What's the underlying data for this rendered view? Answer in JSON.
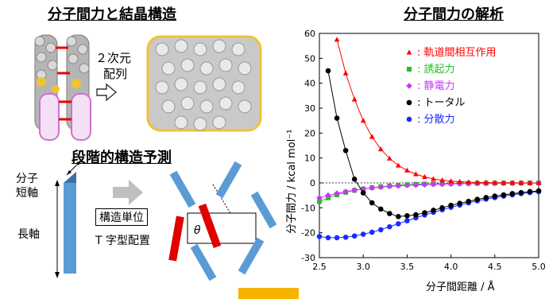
{
  "left": {
    "heading1": "分子間力と結晶構造",
    "array_label_line1": "２次元",
    "array_label_line2": "配列",
    "heading2": "段階的構造予測",
    "short_axis_line1": "分子",
    "short_axis_line2": "短軸",
    "long_axis": "長軸",
    "unit_label": "構造単位",
    "t_label": "T 字型配置",
    "theta": "θ"
  },
  "colors": {
    "orbital": "#ff0000",
    "induction": "#22c122",
    "electrostatic": "#cc33ff",
    "total": "#000000",
    "dispersion": "#1a2cff",
    "arrow": "#f5b400",
    "rod": "#5b9bd5",
    "rod_red": "#e00000"
  },
  "chart_data": {
    "type": "line",
    "title": "分子間力の解析",
    "xlabel": "分子間距離 / Å",
    "ylabel": "分子間力 / kcal mol⁻¹",
    "xlim": [
      2.5,
      5.0
    ],
    "ylim": [
      -30,
      60
    ],
    "xticks": [
      "2.5",
      "3.0",
      "3.5",
      "4.0",
      "4.5",
      "5.0"
    ],
    "yticks": [
      "60",
      "50",
      "40",
      "30",
      "20",
      "10",
      "0",
      "-10",
      "-20",
      "-30"
    ],
    "legend_position": "top-right",
    "series": [
      {
        "name": "軌道間相互作用",
        "marker": "triangle",
        "color": "#ff0000",
        "x": [
          2.7,
          2.8,
          2.9,
          3.0,
          3.1,
          3.2,
          3.3,
          3.4,
          3.5,
          3.6,
          3.7,
          3.8,
          3.9,
          4.0,
          4.1,
          4.2,
          4.3,
          4.4,
          4.5,
          4.6,
          4.7,
          4.8,
          4.9,
          5.0
        ],
        "y": [
          57.5,
          44.0,
          33.5,
          25.0,
          18.5,
          13.5,
          9.8,
          7.0,
          5.0,
          3.5,
          2.4,
          1.6,
          1.1,
          0.7,
          0.5,
          0.3,
          0.2,
          0.15,
          0.1,
          0.05,
          0.03,
          0.02,
          0.01,
          0.0
        ]
      },
      {
        "name": "誘起力",
        "marker": "square",
        "color": "#22c122",
        "x": [
          2.5,
          2.6,
          2.7,
          2.8,
          2.9,
          3.0,
          3.1,
          3.2,
          3.3,
          3.4,
          3.5,
          3.6,
          3.7,
          3.8,
          3.9,
          4.0,
          4.1,
          4.2,
          4.3,
          4.4,
          4.5,
          4.6,
          4.7,
          4.8,
          4.9,
          5.0
        ],
        "y": [
          -7.5,
          -6.0,
          -4.8,
          -3.8,
          -3.0,
          -2.4,
          -1.9,
          -1.5,
          -1.2,
          -0.9,
          -0.7,
          -0.55,
          -0.45,
          -0.35,
          -0.28,
          -0.22,
          -0.18,
          -0.14,
          -0.11,
          -0.09,
          -0.07,
          -0.05,
          -0.04,
          -0.03,
          -0.02,
          -0.01
        ]
      },
      {
        "name": "静電力",
        "marker": "diamond",
        "color": "#cc33ff",
        "x": [
          2.5,
          2.6,
          2.7,
          2.8,
          2.9,
          3.0,
          3.1,
          3.2,
          3.3,
          3.4,
          3.5,
          3.6,
          3.7,
          3.8,
          3.9,
          4.0,
          4.1,
          4.2,
          4.3,
          4.4,
          4.5,
          4.6,
          4.7,
          4.8,
          4.9,
          5.0
        ],
        "y": [
          -6.0,
          -5.0,
          -4.2,
          -3.5,
          -2.9,
          -2.4,
          -2.0,
          -1.7,
          -1.4,
          -1.2,
          -1.0,
          -0.85,
          -0.7,
          -0.6,
          -0.5,
          -0.42,
          -0.35,
          -0.3,
          -0.25,
          -0.21,
          -0.18,
          -0.15,
          -0.12,
          -0.1,
          -0.08,
          -0.06
        ]
      },
      {
        "name": "トータル",
        "marker": "circle",
        "color": "#000000",
        "x": [
          2.6,
          2.7,
          2.8,
          2.9,
          3.0,
          3.1,
          3.2,
          3.3,
          3.4,
          3.5,
          3.6,
          3.7,
          3.8,
          3.9,
          4.0,
          4.1,
          4.2,
          4.3,
          4.4,
          4.5,
          4.6,
          4.7,
          4.8,
          4.9,
          5.0
        ],
        "y": [
          45.0,
          26.0,
          13.0,
          1.5,
          -4.0,
          -8.0,
          -10.5,
          -12.3,
          -13.5,
          -13.2,
          -12.8,
          -12.0,
          -11.0,
          -10.0,
          -9.0,
          -8.2,
          -7.4,
          -6.6,
          -5.9,
          -5.3,
          -4.8,
          -4.3,
          -3.9,
          -3.5,
          -3.2
        ]
      },
      {
        "name": "分散力",
        "marker": "circle",
        "color": "#1a2cff",
        "x": [
          2.5,
          2.6,
          2.7,
          2.8,
          2.9,
          3.0,
          3.1,
          3.2,
          3.3,
          3.4,
          3.5,
          3.6,
          3.7,
          3.8,
          3.9,
          4.0,
          4.1,
          4.2,
          4.3,
          4.4,
          4.5,
          4.6,
          4.7,
          4.8,
          4.9,
          5.0
        ],
        "y": [
          -21.5,
          -22.0,
          -22.0,
          -21.8,
          -21.3,
          -20.6,
          -19.8,
          -18.8,
          -17.6,
          -16.4,
          -15.2,
          -14.0,
          -12.9,
          -11.8,
          -10.8,
          -9.8,
          -8.9,
          -8.0,
          -7.2,
          -6.5,
          -5.9,
          -5.3,
          -4.8,
          -4.3,
          -3.9,
          -3.5
        ]
      }
    ]
  }
}
